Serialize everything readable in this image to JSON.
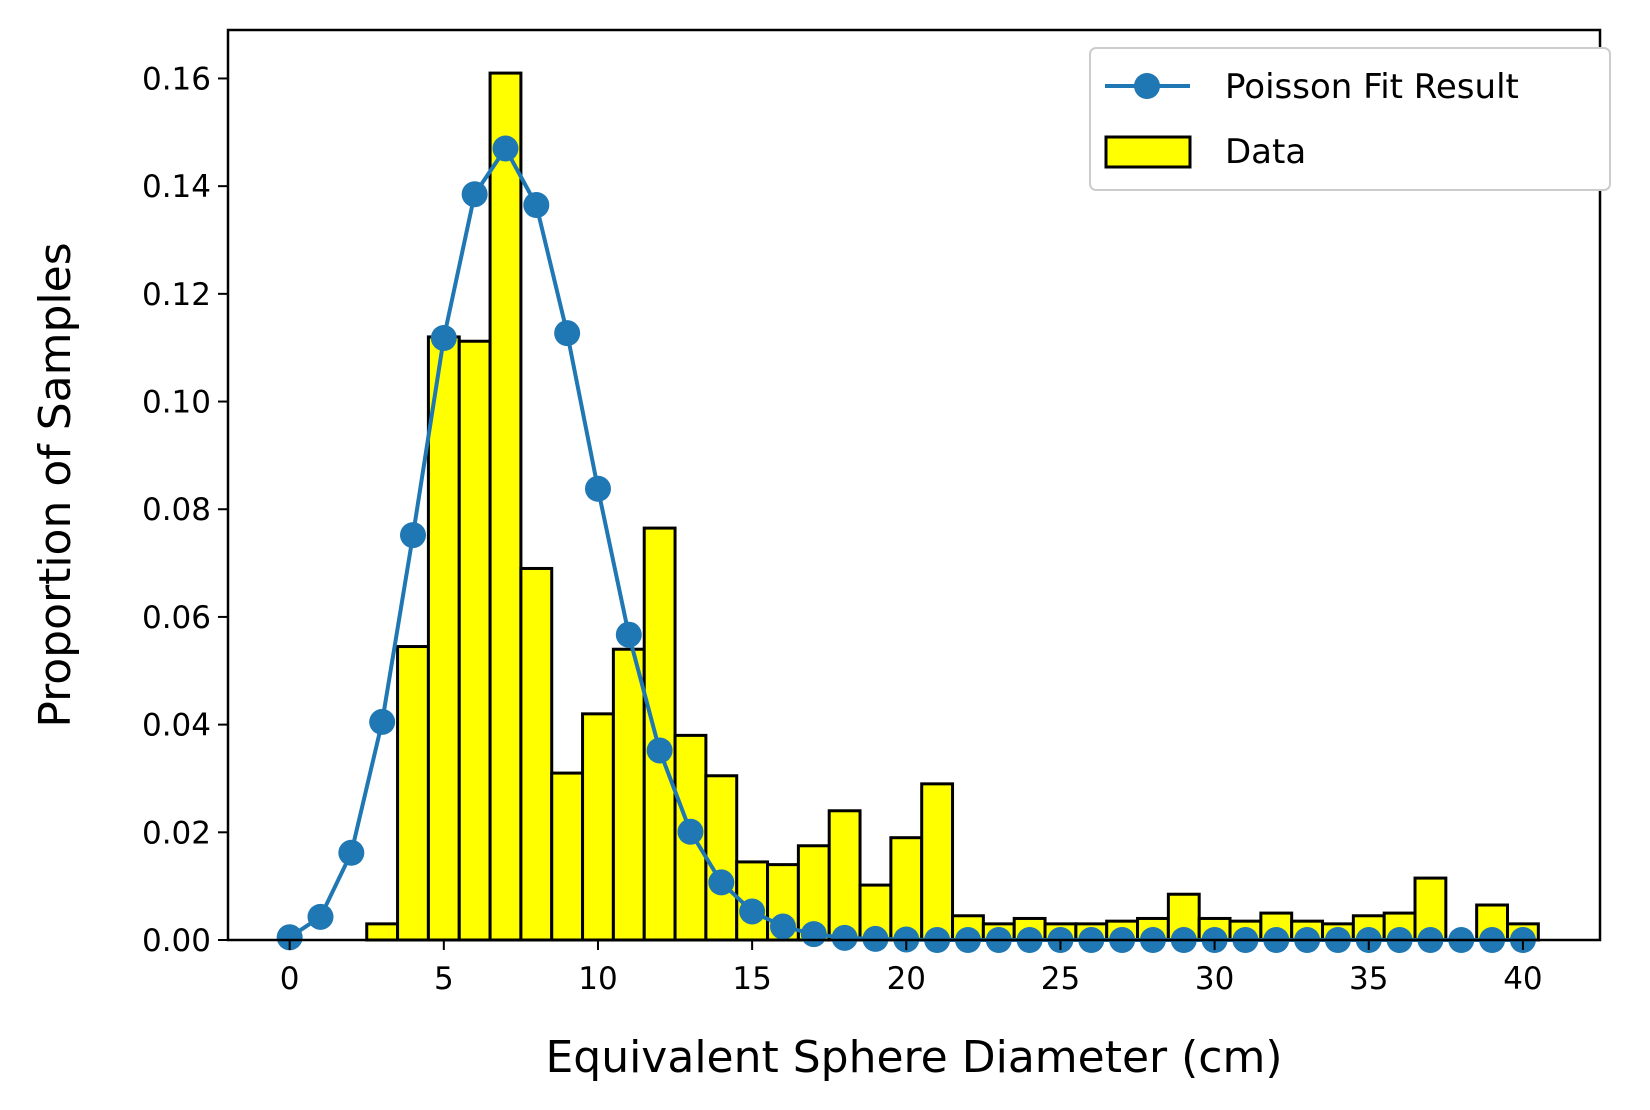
{
  "chart_data": {
    "type": "bar",
    "title": "",
    "xlabel": "Equivalent Sphere Diameter (cm)",
    "ylabel": "Proportion of Samples",
    "xlim": [
      -2,
      42.5
    ],
    "ylim": [
      0,
      0.169
    ],
    "xticks": [
      0,
      5,
      10,
      15,
      20,
      25,
      30,
      35,
      40
    ],
    "xtick_labels": [
      "0",
      "5",
      "10",
      "15",
      "20",
      "25",
      "30",
      "35",
      "40"
    ],
    "yticks": [
      0,
      0.02,
      0.04,
      0.06,
      0.08,
      0.1,
      0.12,
      0.14,
      0.16
    ],
    "ytick_labels": [
      "0.00",
      "0.02",
      "0.04",
      "0.06",
      "0.08",
      "0.10",
      "0.12",
      "0.14",
      "0.16"
    ],
    "grid": false,
    "legend_position": "top-right",
    "series": [
      {
        "name": "Data",
        "kind": "bar",
        "color": "#ffff00",
        "edgecolor": "#000000",
        "bar_width": 1.0,
        "x": [
          3,
          4,
          5,
          6,
          7,
          8,
          9,
          10,
          11,
          12,
          13,
          14,
          15,
          16,
          17,
          18,
          19,
          20,
          21,
          22,
          23,
          24,
          25,
          26,
          27,
          28,
          29,
          30,
          31,
          32,
          33,
          34,
          35,
          36,
          37,
          38,
          39,
          40
        ],
        "values": [
          0.003,
          0.0545,
          0.112,
          0.1112,
          0.161,
          0.069,
          0.031,
          0.042,
          0.054,
          0.0765,
          0.038,
          0.0305,
          0.0145,
          0.014,
          0.0175,
          0.024,
          0.0102,
          0.019,
          0.029,
          0.0045,
          0.003,
          0.004,
          0.003,
          0.003,
          0.0035,
          0.004,
          0.0085,
          0.004,
          0.0035,
          0.005,
          0.0035,
          0.003,
          0.0045,
          0.005,
          0.0115,
          0.0,
          0.0065,
          0.003
        ]
      },
      {
        "name": "Poisson Fit Result",
        "kind": "line",
        "color": "#1f77b4",
        "marker": "circle",
        "x": [
          0,
          1,
          2,
          3,
          4,
          5,
          6,
          7,
          8,
          9,
          10,
          11,
          12,
          13,
          14,
          15,
          16,
          17,
          18,
          19,
          20,
          21,
          22,
          23,
          24,
          25,
          26,
          27,
          28,
          29,
          30,
          31,
          32,
          33,
          34,
          35,
          36,
          37,
          38,
          39,
          40
        ],
        "values": [
          0.0005,
          0.0043,
          0.0162,
          0.0405,
          0.0752,
          0.1118,
          0.1385,
          0.147,
          0.1365,
          0.1127,
          0.0838,
          0.0567,
          0.0352,
          0.0201,
          0.0107,
          0.0053,
          0.0025,
          0.0011,
          0.0004,
          0.0002,
          0.0001,
          0,
          0,
          0,
          0,
          0,
          0,
          0,
          0,
          0,
          0,
          0,
          0,
          0,
          0,
          0,
          0,
          0,
          0,
          0,
          0
        ]
      }
    ]
  }
}
